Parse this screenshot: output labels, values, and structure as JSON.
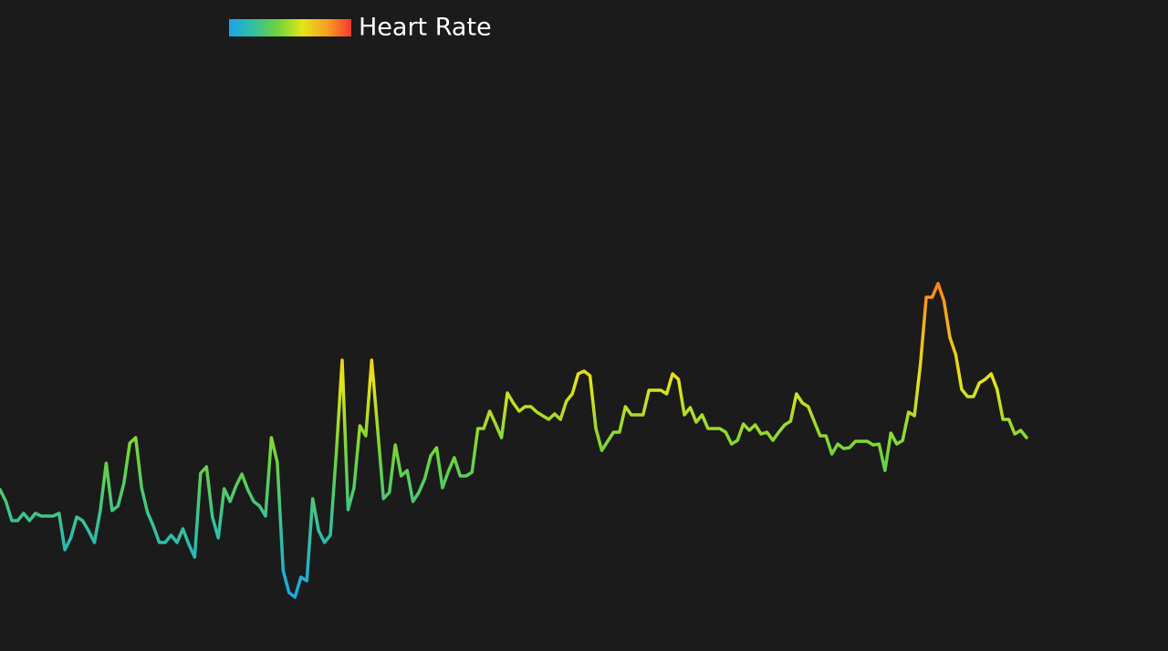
{
  "chart_data": {
    "type": "line",
    "series": [
      {
        "name": "Heart Rate",
        "values": [
          177,
          164,
          143,
          143,
          151,
          143,
          151,
          148,
          148,
          148,
          151,
          111,
          124,
          147,
          143,
          132,
          119,
          154,
          206,
          154,
          159,
          184,
          228,
          234,
          179,
          152,
          137,
          119,
          119,
          127,
          119,
          134,
          117,
          103,
          195,
          202,
          147,
          124,
          178,
          164,
          181,
          194,
          177,
          164,
          159,
          148,
          234,
          207,
          88,
          64,
          59,
          81,
          77,
          167,
          132,
          119,
          127,
          217,
          319,
          155,
          179,
          247,
          236,
          319,
          244,
          167,
          174,
          226,
          192,
          198,
          164,
          174,
          189,
          214,
          223,
          179,
          197,
          212,
          192,
          192,
          196,
          244,
          244,
          263,
          249,
          234,
          283,
          272,
          263,
          268,
          268,
          262,
          258,
          254,
          260,
          254,
          274,
          282,
          304,
          307,
          302,
          244,
          220,
          230,
          240,
          240,
          268,
          259,
          259,
          259,
          286,
          286,
          286,
          282,
          304,
          298,
          259,
          267,
          251,
          259,
          244,
          244,
          244,
          240,
          227,
          231,
          249,
          242,
          248,
          238,
          240,
          231,
          240,
          248,
          252,
          282,
          272,
          268,
          252,
          236,
          236,
          216,
          227,
          222,
          223,
          230,
          230,
          230,
          226,
          227,
          198,
          239,
          227,
          231,
          262,
          258,
          314,
          388,
          388,
          403,
          384,
          344,
          325,
          287,
          279,
          279,
          294,
          298,
          304,
          287,
          254,
          254,
          238,
          242,
          234
        ]
      }
    ],
    "colormap": [
      "#18a4ec",
      "#33c0a0",
      "#6ed43c",
      "#e4e41a",
      "#f7a020",
      "#f5392e"
    ],
    "ylim": [
      50,
      460
    ]
  }
}
